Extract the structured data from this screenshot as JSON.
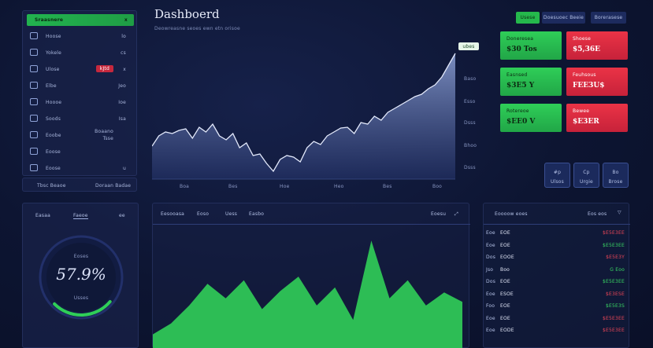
{
  "title": "Dashboerd",
  "subtitle": "Deowreasne seoes ewn etn orisoe",
  "sidebar": {
    "header_label": "Sraasnere",
    "header_close": "x",
    "items": [
      {
        "icon": "refresh-icon",
        "label": "Hoose",
        "value": "lo"
      },
      {
        "icon": "window-icon",
        "label": "Yokele",
        "value": "cs"
      },
      {
        "icon": "leaf-icon",
        "label": "Ulose",
        "badge": "kJtd",
        "value": "x"
      },
      {
        "icon": "chart-icon",
        "label": "Elbe",
        "value": "Jeo"
      },
      {
        "icon": "card-icon",
        "label": "Hoooe",
        "value": "Ioe"
      },
      {
        "icon": "gear-icon",
        "label": "Soods",
        "value": "Isa"
      },
      {
        "icon": "stack-icon",
        "label": "Eoobe",
        "value": "Boaano",
        "value2": "Tsse"
      },
      {
        "icon": "people-icon",
        "label": "Eoose",
        "value": ""
      },
      {
        "icon": "globe-icon",
        "label": "Eoose",
        "value": "u"
      }
    ],
    "footer": [
      "Tbsc Beaoe",
      "Doraan Badae"
    ]
  },
  "top_tabs": [
    {
      "label": "Usese",
      "active": true
    },
    {
      "label": "Doesuoec Beeie",
      "active": false
    },
    {
      "label": "Borerasese",
      "active": false
    }
  ],
  "price_tag": "ubes",
  "main_chart": {
    "x_ticks": [
      "Boa",
      "Bes",
      "Hoe",
      "Heo",
      "Bes",
      "Boo"
    ],
    "y_ticks": [
      "Baso",
      "Esso",
      "Dsss",
      "Bhoo",
      "Dsss"
    ],
    "series": [
      42,
      55,
      60,
      58,
      62,
      64,
      52,
      66,
      60,
      70,
      55,
      50,
      58,
      40,
      46,
      30,
      32,
      20,
      10,
      25,
      30,
      28,
      22,
      40,
      48,
      44,
      55,
      60,
      65,
      66,
      58,
      72,
      70,
      80,
      75,
      85,
      90,
      95,
      100,
      105,
      108,
      115,
      120,
      130,
      145,
      160
    ]
  },
  "tiles": [
    {
      "label": "Doneresea",
      "value": "$30 Tos",
      "color": "green"
    },
    {
      "label": "Shoese",
      "value": "$5,36E",
      "color": "red"
    },
    {
      "label": "Easnsed",
      "value": "$3E5 Y",
      "color": "green"
    },
    {
      "label": "Feuhsous",
      "value": "FEE3U$",
      "color": "red"
    },
    {
      "label": "Rotereoe",
      "value": "$EE0 V",
      "color": "green"
    },
    {
      "label": "Bewee",
      "value": "$E3ER",
      "color": "red"
    }
  ],
  "square_buttons": [
    {
      "top": "#p",
      "bottom": "Ulsos"
    },
    {
      "top": "Cp",
      "bottom": "Urgie"
    },
    {
      "top": "Bo",
      "bottom": "Brose"
    }
  ],
  "gauge": {
    "left_label": "Easaa",
    "mid_label": "Faeoe",
    "right_label": "ee",
    "inner_top": "Eoses",
    "value_text": "57.9%",
    "caption": "Usses",
    "percent": 57.9
  },
  "bottom_chart": {
    "tabs": [
      "Eesooasa",
      "Eoso",
      "Uess",
      "Easbo"
    ],
    "right_label": "Eoesu",
    "series": [
      20,
      35,
      60,
      90,
      70,
      95,
      55,
      80,
      100,
      60,
      85,
      40,
      150,
      70,
      95,
      60,
      78,
      65
    ]
  },
  "table": {
    "header": "Eoooow eoes",
    "header_right": "Eos eos",
    "rows": [
      {
        "c1": "Eoe",
        "c2": "EOE",
        "c3": "$E5E3EE",
        "trend": "neg"
      },
      {
        "c1": "Eoe",
        "c2": "EOE",
        "c3": "$E5E3EE",
        "trend": "pos"
      },
      {
        "c1": "Dos",
        "c2": "EOOE",
        "c3": "$E5E3Y",
        "trend": "neg"
      },
      {
        "c1": "Jso",
        "c2": "Boo",
        "c3": "G Eoo",
        "trend": "pos"
      },
      {
        "c1": "Dos",
        "c2": "EOE",
        "c3": "$E5E3EE",
        "trend": "pos"
      },
      {
        "c1": "Eoe",
        "c2": "ESOE",
        "c3": "$E3ESE",
        "trend": "neg"
      },
      {
        "c1": "Foo",
        "c2": "EOE",
        "c3": "$E5E3S",
        "trend": "pos"
      },
      {
        "c1": "Eoe",
        "c2": "EOE",
        "c3": "$E5E3EE",
        "trend": "neg"
      },
      {
        "c1": "Eoe",
        "c2": "EODE",
        "c3": "$E5E3EE",
        "trend": "neg"
      }
    ]
  },
  "colors": {
    "green": "#2fce58",
    "red": "#e33447",
    "bg": "#0d1532"
  }
}
